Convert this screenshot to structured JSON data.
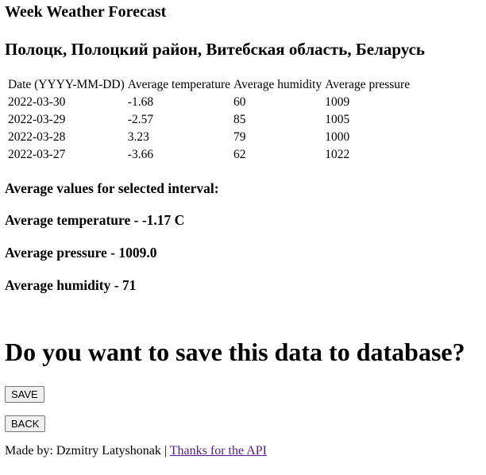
{
  "title": "Week Weather Forecast",
  "location": "Полоцк, Полоцкий район, Витебская область, Беларусь",
  "table": {
    "headers": [
      "Date (YYYY-MM-DD)",
      "Average temperature",
      "Average humidity",
      "Average pressure"
    ],
    "rows": [
      [
        "2022-03-30",
        "-1.68",
        "60",
        "1009"
      ],
      [
        "2022-03-29",
        "-2.57",
        "85",
        "1005"
      ],
      [
        "2022-03-28",
        "3.23",
        "79",
        "1000"
      ],
      [
        "2022-03-27",
        "-3.66",
        "62",
        "1022"
      ]
    ]
  },
  "summary": {
    "heading": "Average values for selected interval:",
    "temperature": "Average temperature - -1.17 C",
    "pressure": "Average pressure - 1009.0",
    "humidity": "Average humidity - 71"
  },
  "save_prompt": "Do you want to save this data to database?",
  "buttons": {
    "save": "SAVE",
    "back": "BACK"
  },
  "footer": {
    "made_by": "Made by: Dzmitry Latyshonak | ",
    "link": "Thanks for the API"
  }
}
